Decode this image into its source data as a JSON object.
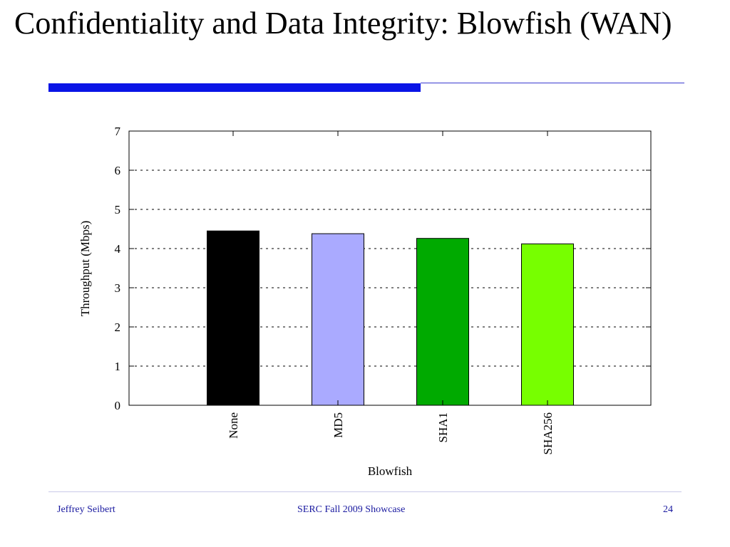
{
  "slide": {
    "title": "Confidentiality and Data Integrity: Blowfish (WAN)",
    "accent_color": "#0a14e6",
    "rule_thin_color": "#3a3ad0",
    "footer_color": "#1a1aa0"
  },
  "footer": {
    "author": "Jeffrey Seibert",
    "event": "SERC Fall 2009 Showcase",
    "page": "24"
  },
  "chart_data": {
    "type": "bar",
    "title": "",
    "xlabel": "Blowfish",
    "ylabel": "Throughput (Mbps)",
    "categories": [
      "None",
      "MD5",
      "SHA1",
      "SHA256"
    ],
    "values": [
      4.45,
      4.38,
      4.26,
      4.12
    ],
    "colors": [
      "#000000",
      "#aaaaff",
      "#00aa00",
      "#77ff00"
    ],
    "ylim": [
      0,
      7
    ],
    "yticks": [
      "0",
      "1",
      "2",
      "3",
      "4",
      "5",
      "6",
      "7"
    ],
    "grid": "horizontal-dashed",
    "legend": "none"
  }
}
